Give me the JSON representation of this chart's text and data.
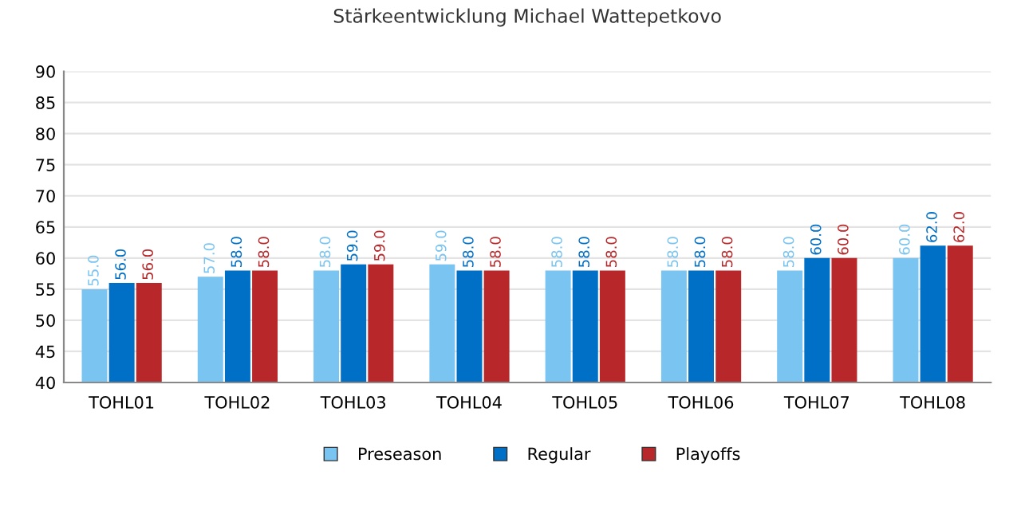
{
  "chart_data": {
    "type": "bar",
    "title": "Stärkeentwicklung Michael Wattepetkovo",
    "categories": [
      "TOHL01",
      "TOHL02",
      "TOHL03",
      "TOHL04",
      "TOHL05",
      "TOHL06",
      "TOHL07",
      "TOHL08"
    ],
    "series": [
      {
        "name": "Preseason",
        "color": "#79c4f0",
        "values": [
          55,
          57,
          58,
          59,
          58,
          58,
          58,
          60
        ],
        "value_labels": [
          "55.0",
          "57.0",
          "58.0",
          "59.0",
          "58.0",
          "58.0",
          "58.0",
          "60.0"
        ]
      },
      {
        "name": "Regular",
        "color": "#006fc6",
        "values": [
          56,
          58,
          59,
          58,
          58,
          58,
          60,
          62
        ],
        "value_labels": [
          "56.0",
          "58.0",
          "59.0",
          "58.0",
          "58.0",
          "58.0",
          "60.0",
          "62.0"
        ]
      },
      {
        "name": "Playoffs",
        "color": "#b8282a",
        "values": [
          56,
          58,
          59,
          58,
          58,
          58,
          60,
          62
        ],
        "value_labels": [
          "56.0",
          "58.0",
          "59.0",
          "58.0",
          "58.0",
          "58.0",
          "60.0",
          "62.0"
        ]
      }
    ],
    "ylim": [
      40,
      90
    ],
    "yticks": [
      40,
      45,
      50,
      55,
      60,
      65,
      70,
      75,
      80,
      85,
      90
    ],
    "grid": "y",
    "legend": "bottom"
  }
}
